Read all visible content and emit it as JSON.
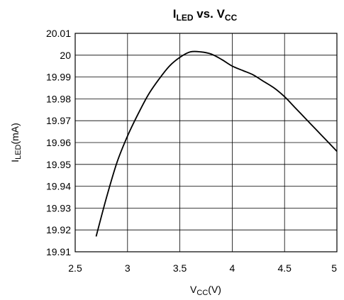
{
  "chart_data": {
    "type": "line",
    "title": "I",
    "title_sub_1": "LED",
    "title_mid": " vs. V",
    "title_sub_2": "CC",
    "xlabel": "V",
    "xlabel_sub": "CC",
    "xlabel_unit": "(V)",
    "ylabel": "I",
    "ylabel_sub": "LED",
    "ylabel_unit": "(mA)",
    "xlim": [
      2.5,
      5
    ],
    "ylim": [
      19.91,
      20.01
    ],
    "x_ticks": [
      "2.5",
      "3",
      "3.5",
      "4",
      "4.5",
      "5"
    ],
    "x_tick_values": [
      2.5,
      3,
      3.5,
      4,
      4.5,
      5
    ],
    "y_ticks": [
      "20.01",
      "20",
      "19.99",
      "19.98",
      "19.97",
      "19.96",
      "19.95",
      "19.94",
      "19.93",
      "19.92",
      "19.91"
    ],
    "y_tick_values": [
      20.01,
      20.0,
      19.99,
      19.98,
      19.97,
      19.96,
      19.95,
      19.94,
      19.93,
      19.92,
      19.91
    ],
    "grid": true,
    "series": [
      {
        "x": [
          2.7,
          2.8,
          2.9,
          3.0,
          3.1,
          3.2,
          3.3,
          3.4,
          3.5,
          3.6,
          3.7,
          3.8,
          3.9,
          4.0,
          4.1,
          4.2,
          4.3,
          4.4,
          4.5,
          4.6,
          4.7,
          4.8,
          4.9,
          5.0
        ],
        "y": [
          19.917,
          19.935,
          19.951,
          19.963,
          19.973,
          19.982,
          19.989,
          19.995,
          19.999,
          20.0015,
          20.0015,
          20.0005,
          19.998,
          19.995,
          19.993,
          19.991,
          19.988,
          19.985,
          19.981,
          19.976,
          19.971,
          19.966,
          19.961,
          19.956
        ]
      }
    ],
    "colors": {
      "line": "#000000",
      "grid": "#000000"
    }
  }
}
